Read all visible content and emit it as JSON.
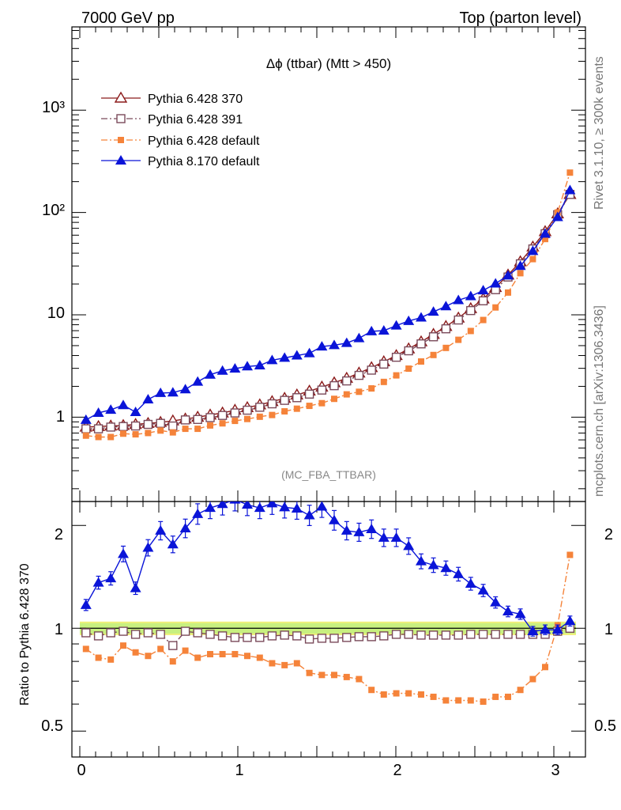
{
  "header": {
    "left": "7000 GeV pp",
    "right": "Top (parton level)"
  },
  "side_text": {
    "rivet": "Rivet 3.1.10, ≥ 300k events",
    "source": "mcplots.cern.ch [arXiv:1306.3436]"
  },
  "colors": {
    "pythia6_370": "#8b1a1a",
    "pythia6_391": "#7a4a5a",
    "pythia6_default": "#f5833a",
    "pythia8_default": "#0a14d8",
    "ref_band_green": "#c8f080",
    "ref_band_yellow": "#f0f07a"
  },
  "chart_data": [
    {
      "type": "line",
      "title": "Δϕ (ttbar) (Mtt > 450)",
      "annotation": "(MC_FBA_TTBAR)",
      "yscale": "log",
      "xlim": [
        -0.05,
        3.2
      ],
      "ylim": [
        0.15,
        6500
      ],
      "y_ticks": [
        "1",
        "10",
        "10²",
        "10³"
      ],
      "legend_position": "top-left",
      "x": [
        0.039,
        0.118,
        0.196,
        0.275,
        0.353,
        0.432,
        0.511,
        0.589,
        0.668,
        0.746,
        0.825,
        0.903,
        0.982,
        1.06,
        1.139,
        1.217,
        1.296,
        1.374,
        1.453,
        1.532,
        1.61,
        1.689,
        1.767,
        1.846,
        1.924,
        2.003,
        2.081,
        2.16,
        2.238,
        2.317,
        2.396,
        2.474,
        2.553,
        2.631,
        2.71,
        2.788,
        2.867,
        2.945,
        3.024,
        3.102
      ],
      "series": [
        {
          "name": "Pythia 6.428 370",
          "color": "#8b1a1a",
          "marker": "open-triangle",
          "dash": "solid",
          "values": [
            0.8,
            0.81,
            0.82,
            0.83,
            0.85,
            0.87,
            0.89,
            0.92,
            0.96,
            1.0,
            1.05,
            1.1,
            1.17,
            1.24,
            1.32,
            1.42,
            1.53,
            1.65,
            1.8,
            1.97,
            2.17,
            2.4,
            2.7,
            3.05,
            3.48,
            4.0,
            4.65,
            5.45,
            6.45,
            7.7,
            9.3,
            11.5,
            14.3,
            18.5,
            24.5,
            33.0,
            46.0,
            65.0,
            97.0,
            150.0
          ]
        },
        {
          "name": "Pythia 6.428 391",
          "color": "#7a4a5a",
          "marker": "open-square",
          "dash": "dash-dot",
          "values": [
            0.77,
            0.77,
            0.8,
            0.81,
            0.82,
            0.85,
            0.87,
            0.82,
            0.94,
            0.95,
            0.99,
            1.04,
            1.1,
            1.17,
            1.25,
            1.35,
            1.46,
            1.55,
            1.68,
            1.84,
            2.03,
            2.26,
            2.56,
            2.88,
            3.3,
            3.85,
            4.45,
            5.2,
            6.1,
            7.3,
            8.9,
            11.0,
            13.7,
            17.6,
            23.4,
            31.5,
            44.0,
            62.0,
            95.0,
            150.0
          ]
        },
        {
          "name": "Pythia 6.428 default",
          "color": "#f5833a",
          "marker": "filled-square",
          "dash": "dash-dot",
          "values": [
            0.66,
            0.64,
            0.64,
            0.69,
            0.68,
            0.7,
            0.74,
            0.71,
            0.77,
            0.77,
            0.83,
            0.87,
            0.92,
            0.96,
            1.01,
            1.05,
            1.14,
            1.21,
            1.29,
            1.37,
            1.51,
            1.67,
            1.77,
            1.91,
            2.21,
            2.56,
            2.98,
            3.5,
            4.05,
            4.75,
            5.7,
            6.95,
            8.9,
            11.8,
            16.5,
            25.5,
            35.0,
            55.0,
            100.0,
            245.0
          ]
        },
        {
          "name": "Pythia 8.170 default",
          "color": "#0a14d8",
          "marker": "filled-triangle",
          "dash": "solid",
          "values": [
            0.94,
            1.1,
            1.18,
            1.31,
            1.12,
            1.49,
            1.72,
            1.74,
            1.87,
            2.22,
            2.6,
            2.84,
            2.98,
            3.13,
            3.2,
            3.6,
            3.8,
            4.0,
            4.21,
            4.9,
            5.05,
            5.3,
            5.9,
            6.9,
            7.0,
            7.85,
            8.7,
            9.4,
            10.7,
            12.1,
            13.9,
            15.2,
            17.3,
            20.2,
            24.2,
            30.0,
            42.0,
            62.0,
            90.0,
            165.0
          ]
        }
      ]
    },
    {
      "type": "line",
      "ylabel": "Ratio to Pythia 6.428 370",
      "yscale": "log",
      "xlim": [
        -0.05,
        3.2
      ],
      "ylim": [
        0.42,
        2.35
      ],
      "x_ticks": [
        "0",
        "1",
        "2",
        "3"
      ],
      "y_ticks": [
        "0.5",
        "1",
        "2"
      ],
      "reference_band": [
        0.965,
        1.035
      ],
      "x": [
        0.039,
        0.118,
        0.196,
        0.275,
        0.353,
        0.432,
        0.511,
        0.589,
        0.668,
        0.746,
        0.825,
        0.903,
        0.982,
        1.06,
        1.139,
        1.217,
        1.296,
        1.374,
        1.453,
        1.532,
        1.61,
        1.689,
        1.767,
        1.846,
        1.924,
        2.003,
        2.081,
        2.16,
        2.238,
        2.317,
        2.396,
        2.474,
        2.553,
        2.631,
        2.71,
        2.788,
        2.867,
        2.945,
        3.024,
        3.102
      ],
      "series": [
        {
          "name": "Pythia 6.428 370",
          "values": [
            1,
            1,
            1,
            1,
            1,
            1,
            1,
            1,
            1,
            1,
            1,
            1,
            1,
            1,
            1,
            1,
            1,
            1,
            1,
            1,
            1,
            1,
            1,
            1,
            1,
            1,
            1,
            1,
            1,
            1,
            1,
            1,
            1,
            1,
            1,
            1,
            1,
            1,
            1,
            1
          ]
        },
        {
          "name": "Pythia 6.428 391",
          "values": [
            0.97,
            0.95,
            0.97,
            0.98,
            0.96,
            0.97,
            0.96,
            0.89,
            0.98,
            0.97,
            0.96,
            0.95,
            0.94,
            0.94,
            0.94,
            0.95,
            0.955,
            0.95,
            0.93,
            0.935,
            0.935,
            0.94,
            0.945,
            0.945,
            0.95,
            0.96,
            0.96,
            0.955,
            0.955,
            0.955,
            0.955,
            0.96,
            0.96,
            0.96,
            0.96,
            0.96,
            0.96,
            0.96,
            0.98,
            1.0
          ]
        },
        {
          "name": "Pythia 6.428 default",
          "values": [
            0.87,
            0.82,
            0.81,
            0.89,
            0.85,
            0.83,
            0.87,
            0.8,
            0.86,
            0.82,
            0.84,
            0.84,
            0.84,
            0.83,
            0.82,
            0.79,
            0.78,
            0.79,
            0.74,
            0.73,
            0.73,
            0.72,
            0.71,
            0.66,
            0.64,
            0.645,
            0.645,
            0.64,
            0.63,
            0.615,
            0.615,
            0.615,
            0.61,
            0.63,
            0.63,
            0.66,
            0.71,
            0.77,
            1.02,
            1.64
          ]
        },
        {
          "name": "Pythia 8.170 default",
          "values": [
            1.17,
            1.36,
            1.4,
            1.65,
            1.31,
            1.72,
            1.93,
            1.76,
            1.96,
            2.16,
            2.25,
            2.31,
            2.38,
            2.3,
            2.25,
            2.32,
            2.26,
            2.24,
            2.14,
            2.27,
            2.07,
            1.93,
            1.91,
            1.95,
            1.84,
            1.84,
            1.74,
            1.57,
            1.53,
            1.5,
            1.44,
            1.35,
            1.29,
            1.19,
            1.12,
            1.1,
            0.98,
            0.99,
            0.99,
            1.05
          ]
        }
      ]
    }
  ]
}
